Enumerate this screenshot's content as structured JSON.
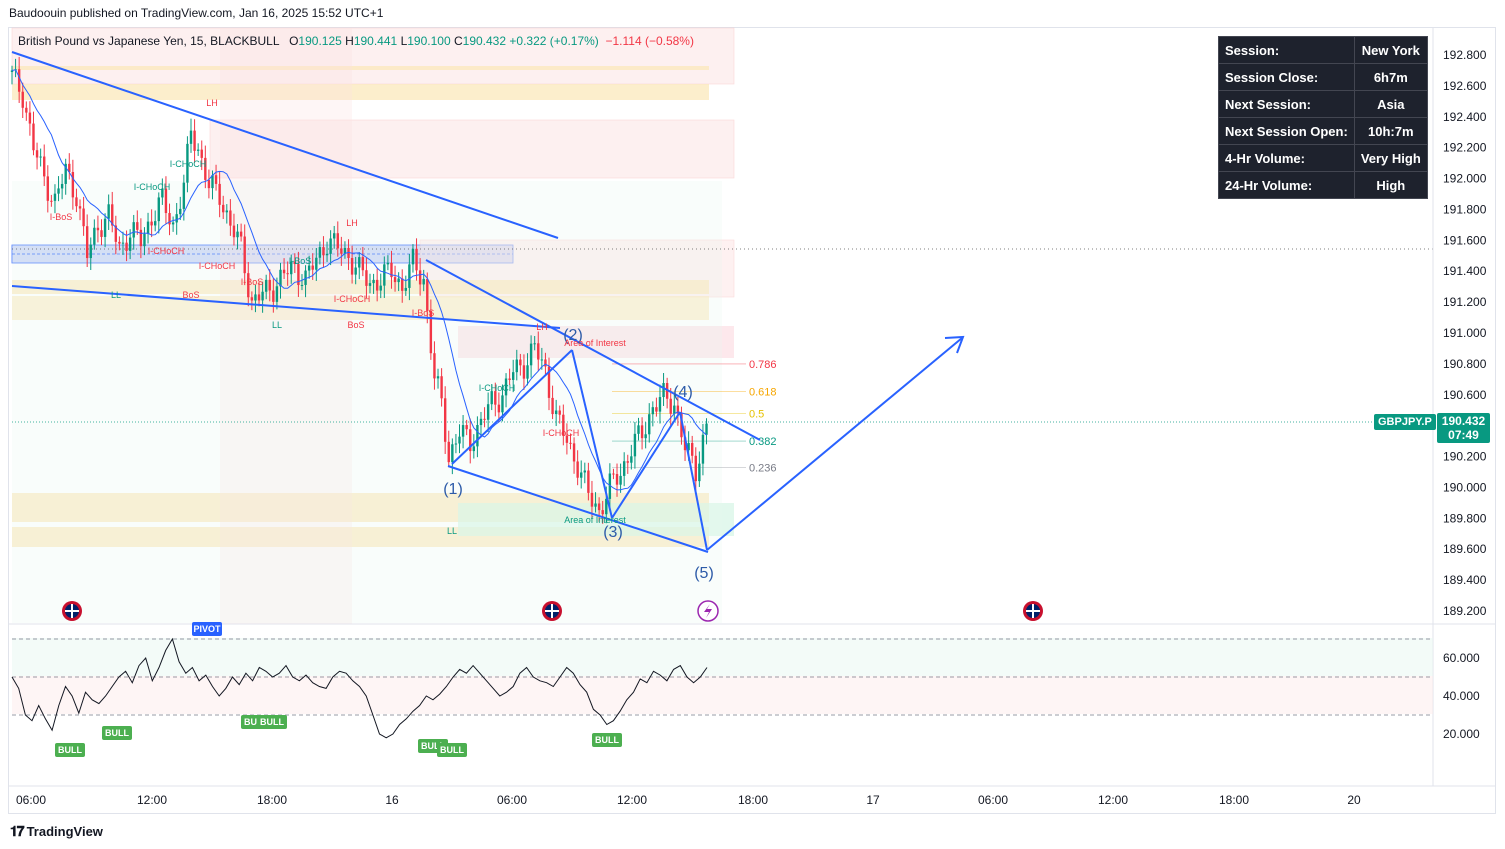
{
  "header": {
    "publisher": "Baudoouin published on TradingView.com, Jan 16, 2025 15:52 UTC+1"
  },
  "legend": {
    "instrument": "British Pound vs Japanese Yen, 15, BLACKBULL",
    "open_label": "O",
    "open": "190.125",
    "high_label": "H",
    "high": "190.441",
    "low_label": "L",
    "low": "190.100",
    "close_label": "C",
    "close": "190.432",
    "change": "+0.322 (+0.17%)",
    "change2": "−1.114 (−0.58%)"
  },
  "session_table": [
    {
      "label": "Session:",
      "value": "New York"
    },
    {
      "label": "Session Close:",
      "value": "6h7m"
    },
    {
      "label": "Next Session:",
      "value": "Asia"
    },
    {
      "label": "Next Session Open:",
      "value": "10h:7m"
    },
    {
      "label": "4-Hr Volume:",
      "value": "Very High"
    },
    {
      "label": "24-Hr Volume:",
      "value": "High"
    }
  ],
  "price_tag": {
    "symbol": "GBPJPY.P",
    "price": "190.432",
    "countdown": "07:49"
  },
  "branding": {
    "logo": "TradingView"
  },
  "colors": {
    "up": "#089981",
    "down": "#f23645",
    "trend": "#2962ff",
    "ma": "#2962ff"
  },
  "chart_data": [
    {
      "type": "candlestick",
      "symbol": "GBPJPY",
      "timeframe": "15",
      "y_axis": {
        "ticks": [
          192.8,
          192.6,
          192.4,
          192.2,
          192.0,
          191.8,
          191.6,
          191.4,
          191.2,
          191.0,
          190.8,
          190.6,
          190.2,
          190.0,
          189.8,
          189.6,
          189.4,
          189.2
        ],
        "range": [
          189.1,
          192.95
        ]
      },
      "x_axis": {
        "ticks": [
          "06:00",
          "12:00",
          "18:00",
          "16",
          "06:00",
          "12:00",
          "18:00",
          "17",
          "06:00",
          "12:00",
          "18:00",
          "20"
        ]
      },
      "last_price": 190.432,
      "close_path": [
        [
          0,
          192.66
        ],
        [
          3,
          192.55
        ],
        [
          6,
          192.2
        ],
        [
          9,
          192.0
        ],
        [
          12,
          191.85
        ],
        [
          15,
          192.05
        ],
        [
          18,
          191.9
        ],
        [
          21,
          191.5
        ],
        [
          24,
          191.7
        ],
        [
          27,
          191.75
        ],
        [
          30,
          191.55
        ],
        [
          33,
          191.65
        ],
        [
          36,
          191.6
        ],
        [
          39,
          191.75
        ],
        [
          42,
          191.85
        ],
        [
          45,
          191.7
        ],
        [
          48,
          191.95
        ],
        [
          50,
          192.3
        ],
        [
          52,
          192.2
        ],
        [
          55,
          191.95
        ],
        [
          58,
          191.9
        ],
        [
          61,
          191.7
        ],
        [
          64,
          191.55
        ],
        [
          67,
          191.2
        ],
        [
          70,
          191.25
        ],
        [
          73,
          191.3
        ],
        [
          76,
          191.38
        ],
        [
          79,
          191.42
        ],
        [
          82,
          191.35
        ],
        [
          85,
          191.47
        ],
        [
          88,
          191.6
        ],
        [
          91,
          191.55
        ],
        [
          94,
          191.5
        ],
        [
          97,
          191.4
        ],
        [
          100,
          191.32
        ],
        [
          103,
          191.35
        ],
        [
          106,
          191.4
        ],
        [
          109,
          191.3
        ],
        [
          112,
          191.45
        ],
        [
          115,
          191.35
        ],
        [
          118,
          190.7
        ],
        [
          120,
          190.55
        ],
        [
          122,
          190.2
        ],
        [
          125,
          190.35
        ],
        [
          128,
          190.3
        ],
        [
          131,
          190.42
        ],
        [
          134,
          190.55
        ],
        [
          137,
          190.6
        ],
        [
          140,
          190.75
        ],
        [
          143,
          190.8
        ],
        [
          146,
          190.9
        ],
        [
          149,
          190.75
        ],
        [
          152,
          190.45
        ],
        [
          155,
          190.3
        ],
        [
          158,
          190.15
        ],
        [
          161,
          189.95
        ],
        [
          164,
          189.85
        ],
        [
          167,
          190.0
        ],
        [
          170,
          190.1
        ],
        [
          173,
          190.25
        ],
        [
          176,
          190.35
        ],
        [
          179,
          190.52
        ],
        [
          182,
          190.58
        ],
        [
          185,
          190.55
        ],
        [
          188,
          190.25
        ],
        [
          191,
          190.12
        ],
        [
          194,
          190.4
        ]
      ],
      "moving_average": "blue",
      "levels": {
        "fib": [
          {
            "label": "0.786",
            "price": 190.8
          },
          {
            "label": "0.618",
            "price": 190.62
          },
          {
            "label": "0.5",
            "price": 190.48
          },
          {
            "label": "0.382",
            "price": 190.3
          },
          {
            "label": "0.236",
            "price": 190.13
          }
        ]
      },
      "wave_labels": [
        {
          "label": "(1)",
          "price": 190.0
        },
        {
          "label": "(2)",
          "price": 191.0
        },
        {
          "label": "(3)",
          "price": 189.78
        },
        {
          "label": "(4)",
          "price": 190.72
        },
        {
          "label": "(5)",
          "price": 189.47
        }
      ],
      "structure_labels": [
        "LH",
        "I-CHoCH",
        "I-CHoCH",
        "I-BoS",
        "I-CHoCH",
        "I-CHoCH",
        "LL",
        "BoS",
        "LL",
        "LH",
        "I-CHoCH",
        "BoS",
        "I-BoS",
        "LH",
        "I-CHoCH",
        "I-CHoCH",
        "LL",
        "I-BoS",
        "I-BoS"
      ],
      "zone_labels": [
        "Area of Interest",
        "Area of Interest"
      ]
    },
    {
      "type": "line",
      "name": "oscillator",
      "y_axis": {
        "ticks": [
          60.0,
          40.0,
          20.0
        ],
        "range": [
          10,
          72
        ]
      },
      "bands": [
        70,
        50,
        30
      ],
      "values": [
        50,
        44,
        30,
        27,
        35,
        28,
        22,
        35,
        45,
        40,
        31,
        42,
        38,
        36,
        40,
        45,
        50,
        53,
        47,
        56,
        60,
        48,
        55,
        64,
        70,
        58,
        52,
        55,
        48,
        51,
        45,
        40,
        44,
        50,
        46,
        52,
        48,
        55,
        53,
        50,
        52,
        56,
        50,
        48,
        51,
        47,
        45,
        44,
        50,
        53,
        52,
        48,
        45,
        40,
        30,
        20,
        18,
        20,
        25,
        28,
        32,
        35,
        40,
        38,
        41,
        45,
        50,
        54,
        52,
        56,
        52,
        48,
        44,
        40,
        42,
        45,
        52,
        55,
        50,
        48,
        47,
        45,
        50,
        55,
        52,
        46,
        42,
        33,
        30,
        25,
        27,
        32,
        38,
        42,
        49,
        47,
        53,
        51,
        48,
        54,
        56,
        50,
        47,
        50,
        55
      ],
      "markers": [
        "PIVOT",
        "BULL",
        "BULL",
        "BULL",
        "BULL",
        "BULL",
        "BULL",
        "BULL"
      ]
    }
  ]
}
